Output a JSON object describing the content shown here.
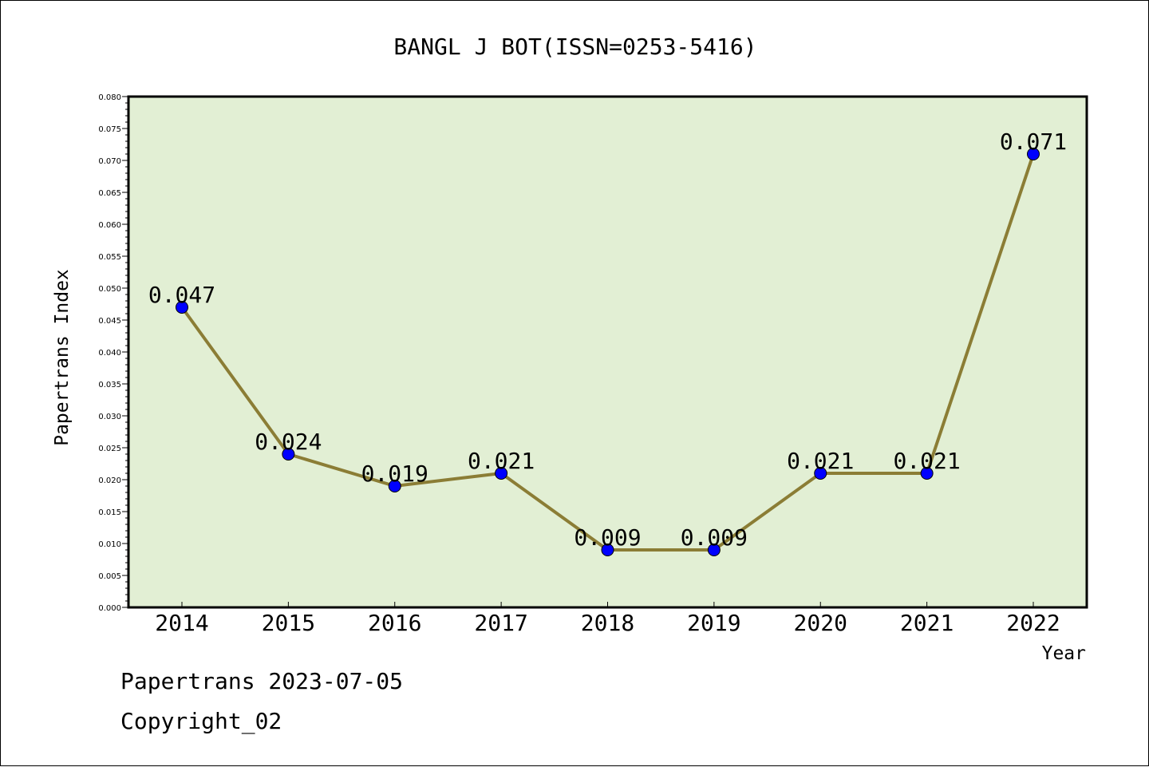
{
  "chart_data": {
    "type": "line",
    "title": "BANGL J BOT(ISSN=0253-5416)",
    "xlabel": "Year",
    "ylabel": "Papertrans Index",
    "categories": [
      "2014",
      "2015",
      "2016",
      "2017",
      "2018",
      "2019",
      "2020",
      "2021",
      "2022"
    ],
    "series": [
      {
        "values": [
          0.047,
          0.024,
          0.019,
          0.021,
          0.009,
          0.009,
          0.021,
          0.021,
          0.071
        ]
      }
    ],
    "data_labels": [
      "0.047",
      "0.024",
      "0.019",
      "0.021",
      "0.009",
      "0.009",
      "0.021",
      "0.021",
      "0.071"
    ],
    "ylim": [
      0,
      0.08
    ],
    "y_ticks": [
      "0.000",
      "0.005",
      "0.010",
      "0.015",
      "0.020",
      "0.025",
      "0.030",
      "0.035",
      "0.040",
      "0.045",
      "0.050",
      "0.055",
      "0.060",
      "0.065",
      "0.070",
      "0.075",
      "0.080"
    ],
    "grid": false,
    "legend": "none",
    "colors": {
      "plot_background": "#e2efd4",
      "line": "#8b7d35",
      "marker": "#0000ff",
      "frame": "#000000"
    }
  },
  "footer": {
    "date_line": "Papertrans 2023-07-05",
    "copyright_line": "Copyright_02"
  }
}
